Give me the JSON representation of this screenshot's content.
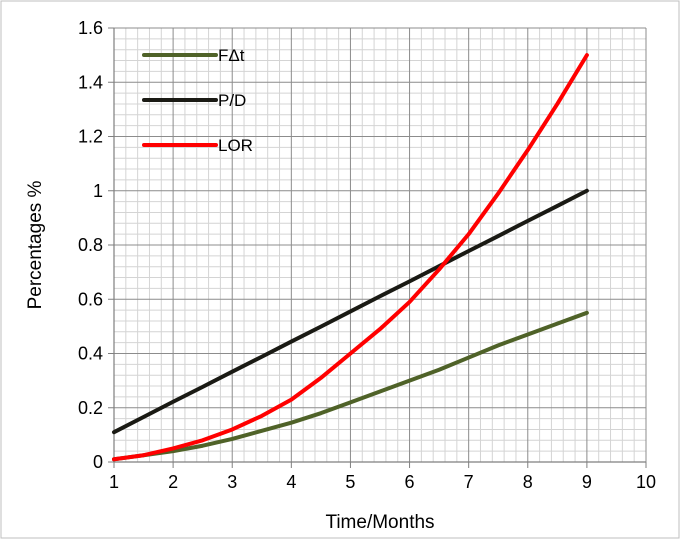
{
  "chart_data": {
    "type": "line",
    "title": "",
    "xlabel": "Time/Months",
    "ylabel": "Percentages %",
    "xlim": [
      1,
      10
    ],
    "ylim": [
      0,
      1.6
    ],
    "x_ticks": [
      1,
      2,
      3,
      4,
      5,
      6,
      7,
      8,
      9,
      10
    ],
    "y_ticks": [
      0,
      0.2,
      0.4,
      0.6,
      0.8,
      1,
      1.2,
      1.4,
      1.6
    ],
    "y_tick_labels": [
      "0",
      "0.2",
      "0.4",
      "0.6",
      "0.8",
      "1",
      "1.2",
      "1.4",
      "1.6"
    ],
    "grid": {
      "major": true,
      "minor": true
    },
    "legend_position": "top-left",
    "x": [
      1,
      1.5,
      2,
      2.5,
      3,
      3.5,
      4,
      4.5,
      5,
      5.5,
      6,
      6.5,
      7,
      7.5,
      8,
      8.5,
      9
    ],
    "series": [
      {
        "name": "FΔt",
        "color": "#4f6228",
        "values": [
          0.01,
          0.025,
          0.04,
          0.06,
          0.085,
          0.115,
          0.145,
          0.18,
          0.22,
          0.26,
          0.3,
          0.34,
          0.385,
          0.43,
          0.47,
          0.51,
          0.55
        ]
      },
      {
        "name": "P/D",
        "color": "#1a1a14",
        "values": [
          0.11,
          0.166,
          0.222,
          0.277,
          0.333,
          0.388,
          0.444,
          0.499,
          0.555,
          0.611,
          0.666,
          0.722,
          0.778,
          0.833,
          0.889,
          0.944,
          1.0
        ]
      },
      {
        "name": "LOR",
        "color": "#ff0000",
        "values": [
          0.01,
          0.025,
          0.05,
          0.08,
          0.12,
          0.17,
          0.23,
          0.31,
          0.4,
          0.49,
          0.59,
          0.71,
          0.84,
          0.99,
          1.15,
          1.32,
          1.5
        ]
      }
    ]
  }
}
